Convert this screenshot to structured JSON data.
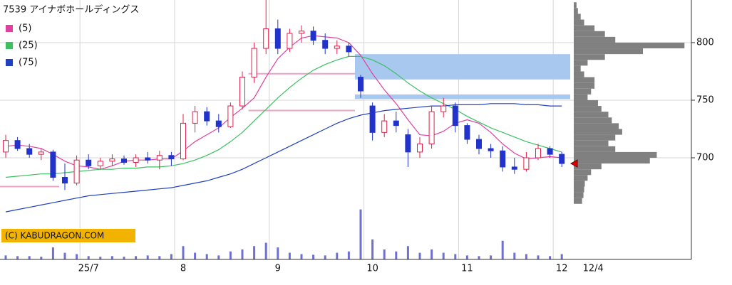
{
  "chart_data": {
    "type": "candlestick",
    "title": "7539 アイナボホールディングス",
    "copyright": "(C) KABUDRAGON.COM",
    "categories": [
      null,
      null,
      null,
      null,
      null,
      null,
      null,
      "25/7",
      null,
      null,
      null,
      null,
      null,
      null,
      null,
      "8",
      null,
      null,
      null,
      null,
      null,
      null,
      null,
      "9",
      null,
      null,
      null,
      null,
      null,
      null,
      null,
      "10",
      null,
      null,
      null,
      null,
      null,
      null,
      null,
      "11",
      null,
      null,
      null,
      null,
      null,
      null,
      null,
      "12"
    ],
    "last_date": "12/4",
    "up_color": "#e0204a",
    "down_color": "#2233cc",
    "ohlc": [
      [
        705,
        720,
        700,
        715
      ],
      [
        715,
        718,
        706,
        708
      ],
      [
        708,
        712,
        700,
        703
      ],
      [
        703,
        708,
        698,
        705
      ],
      [
        705,
        707,
        680,
        683
      ],
      [
        683,
        695,
        672,
        678
      ],
      [
        678,
        702,
        676,
        698
      ],
      [
        698,
        703,
        690,
        693
      ],
      [
        693,
        700,
        690,
        697
      ],
      [
        697,
        703,
        693,
        699
      ],
      [
        699,
        702,
        694,
        696
      ],
      [
        696,
        703,
        692,
        700
      ],
      [
        700,
        705,
        695,
        698
      ],
      [
        698,
        706,
        690,
        702
      ],
      [
        702,
        705,
        693,
        699
      ],
      [
        699,
        738,
        698,
        730
      ],
      [
        730,
        745,
        722,
        740
      ],
      [
        740,
        744,
        728,
        732
      ],
      [
        732,
        738,
        722,
        727
      ],
      [
        727,
        748,
        726,
        745
      ],
      [
        745,
        775,
        742,
        770
      ],
      [
        770,
        800,
        765,
        795
      ],
      [
        795,
        837,
        790,
        812
      ],
      [
        812,
        820,
        790,
        795
      ],
      [
        795,
        812,
        792,
        808
      ],
      [
        808,
        815,
        800,
        810
      ],
      [
        810,
        814,
        798,
        802
      ],
      [
        802,
        808,
        790,
        795
      ],
      [
        795,
        802,
        790,
        797
      ],
      [
        797,
        800,
        788,
        792
      ],
      [
        770,
        772,
        752,
        758
      ],
      [
        745,
        748,
        715,
        722
      ],
      [
        722,
        738,
        718,
        732
      ],
      [
        732,
        740,
        722,
        728
      ],
      [
        720,
        725,
        692,
        705
      ],
      [
        705,
        718,
        700,
        712
      ],
      [
        712,
        745,
        708,
        740
      ],
      [
        740,
        752,
        735,
        745
      ],
      [
        745,
        748,
        722,
        728
      ],
      [
        728,
        730,
        712,
        716
      ],
      [
        716,
        720,
        703,
        708
      ],
      [
        708,
        712,
        700,
        706
      ],
      [
        706,
        710,
        688,
        692
      ],
      [
        692,
        700,
        686,
        690
      ],
      [
        690,
        705,
        688,
        700
      ],
      [
        700,
        712,
        698,
        708
      ],
      [
        708,
        710,
        700,
        703
      ],
      [
        703,
        705,
        692,
        695
      ]
    ],
    "series": [
      {
        "name": "(5)",
        "color": "#e040a0",
        "values": [
          710,
          711,
          710,
          708,
          703,
          697,
          693,
          692,
          690,
          693,
          697,
          698,
          698,
          699,
          699,
          706,
          714,
          720,
          726,
          735,
          743,
          752,
          770,
          786,
          796,
          804,
          806,
          805,
          804,
          800,
          789,
          773,
          759,
          747,
          733,
          720,
          719,
          723,
          730,
          733,
          730,
          722,
          712,
          704,
          699,
          700,
          701,
          700
        ]
      },
      {
        "name": "(25)",
        "color": "#3cc060",
        "values": [
          683,
          684,
          685,
          686,
          686,
          687,
          688,
          689,
          690,
          690,
          691,
          691,
          692,
          692,
          693,
          695,
          698,
          702,
          707,
          714,
          722,
          732,
          742,
          752,
          761,
          769,
          776,
          781,
          785,
          788,
          788,
          785,
          780,
          773,
          765,
          758,
          752,
          747,
          742,
          736,
          731,
          726,
          722,
          718,
          714,
          711,
          708,
          705
        ]
      },
      {
        "name": "(75)",
        "color": "#2040c0",
        "values": [
          653,
          655,
          657,
          659,
          661,
          663,
          665,
          667,
          668,
          669,
          670,
          671,
          672,
          673,
          674,
          676,
          678,
          680,
          683,
          686,
          690,
          695,
          700,
          705,
          710,
          715,
          720,
          725,
          730,
          734,
          737,
          739,
          741,
          742,
          743,
          744,
          745,
          745,
          746,
          746,
          746,
          747,
          747,
          747,
          746,
          746,
          745,
          745
        ]
      }
    ],
    "volume": {
      "color": "#7070d0",
      "ylim": [
        0,
        80
      ],
      "values": [
        6,
        5,
        5,
        4,
        18,
        10,
        8,
        5,
        4,
        5,
        4,
        5,
        6,
        5,
        8,
        20,
        10,
        8,
        6,
        12,
        15,
        20,
        25,
        18,
        10,
        8,
        7,
        6,
        10,
        12,
        75,
        30,
        15,
        12,
        20,
        10,
        15,
        10,
        8,
        6,
        5,
        6,
        28,
        10,
        8,
        6,
        5,
        8
      ]
    },
    "profile": {
      "color": "#808080",
      "xlim": [
        0,
        170
      ],
      "bins": [
        660,
        665,
        670,
        675,
        680,
        685,
        690,
        695,
        700,
        705,
        710,
        715,
        720,
        725,
        730,
        735,
        740,
        745,
        750,
        755,
        760,
        765,
        770,
        775,
        780,
        785,
        790,
        795,
        800,
        805,
        810,
        815,
        820,
        825,
        830,
        835
      ],
      "counts": [
        12,
        14,
        15,
        16,
        20,
        25,
        40,
        110,
        120,
        60,
        50,
        60,
        70,
        65,
        55,
        50,
        40,
        35,
        20,
        25,
        30,
        30,
        15,
        10,
        20,
        45,
        100,
        160,
        60,
        45,
        30,
        15,
        10,
        6,
        4
      ]
    },
    "zones": [
      {
        "from": 768,
        "to": 790,
        "start": 30
      },
      {
        "from": 751,
        "to": 755,
        "start": 30
      }
    ],
    "zone_color": "#a8c8f0",
    "levels": [
      {
        "value": 773,
        "start": 21,
        "end": 30
      },
      {
        "value": 741,
        "start": 21,
        "end": 30
      },
      {
        "value": 675,
        "start": 0,
        "end": 5
      }
    ],
    "level_color": "#f0a0c8",
    "ylim": [
      650,
      837
    ],
    "yticks": [
      700,
      750,
      800
    ],
    "grid": true
  }
}
